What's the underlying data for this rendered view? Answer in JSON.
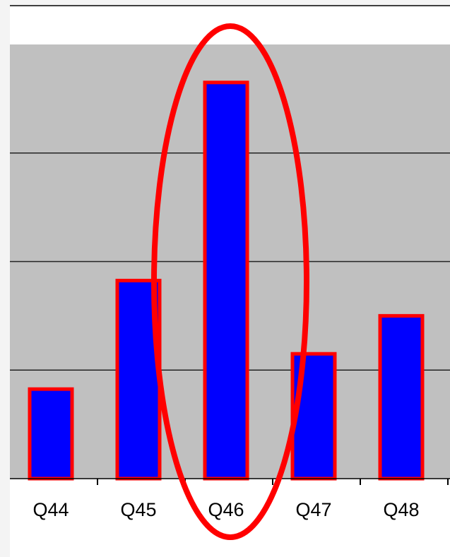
{
  "chart_data": {
    "type": "bar",
    "categories": [
      "Q44",
      "Q45",
      "Q46",
      "Q47",
      "Q48"
    ],
    "values": [
      1.65,
      3.65,
      7.3,
      2.3,
      3.0
    ],
    "ylim": [
      0,
      8
    ],
    "y_gridlines": [
      2,
      4,
      6,
      8
    ],
    "grid": true,
    "legend": "none",
    "colors": {
      "bar_fill": "#0000ff",
      "bar_border": "#ff0000",
      "plot_background": "#c0c0c0",
      "gridline": "#222222",
      "highlight_ellipse": "#ff0000"
    },
    "annotation": {
      "type": "ellipse-highlight",
      "target_category": "Q46"
    }
  }
}
